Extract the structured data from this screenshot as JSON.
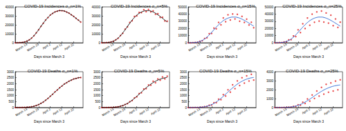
{
  "chart_data": [
    {
      "type": "line",
      "title": "COVID-19 Incidences σ_n=1%",
      "x_label": "Days since March 3",
      "x": [
        0,
        2,
        4,
        6,
        8,
        10,
        12,
        14,
        16,
        18,
        20,
        22,
        24,
        26,
        28,
        30,
        32,
        34,
        36,
        38,
        40,
        42,
        44,
        46,
        48,
        50,
        52,
        54,
        56
      ],
      "xlim": [
        0,
        58
      ],
      "xticks": [
        {
          "value": 10,
          "label": "March 13"
        },
        {
          "value": 20,
          "label": "March 23"
        },
        {
          "value": 30,
          "label": "April 2"
        },
        {
          "value": 40,
          "label": "April 12"
        },
        {
          "value": 50,
          "label": "April 22"
        }
      ],
      "ylim": [
        0,
        40000
      ],
      "yticks": [
        0,
        10000,
        20000,
        30000,
        40000
      ],
      "grid": false,
      "series": [
        {
          "type": "scatter",
          "color": "#e41a1c",
          "marker": "circle",
          "values": [
            0,
            51,
            148,
            404,
            893,
            1815,
            3180,
            5240,
            7760,
            11080,
            14420,
            18300,
            21700,
            25350,
            28100,
            30950,
            32700,
            34450,
            35200,
            35900,
            35700,
            35450,
            34200,
            33050,
            31100,
            29400,
            27200,
            25300,
            23050
          ]
        },
        {
          "type": "line",
          "color": "#000000",
          "line_style": "solid",
          "values": [
            0,
            50,
            150,
            400,
            900,
            1800,
            3200,
            5200,
            7800,
            11000,
            14500,
            18200,
            21800,
            25200,
            28200,
            30800,
            32800,
            34300,
            35300,
            35800,
            35800,
            35300,
            34300,
            32900,
            31200,
            29300,
            27300,
            25200,
            23200
          ]
        }
      ]
    },
    {
      "type": "line",
      "title": "COVID-19 Incidences σ_n=5%",
      "x_label": "Days since March 3",
      "x": [
        0,
        2,
        4,
        6,
        8,
        10,
        12,
        14,
        16,
        18,
        20,
        22,
        24,
        26,
        28,
        30,
        32,
        34,
        36,
        38,
        40,
        42,
        44,
        46,
        48,
        50,
        52,
        54,
        56
      ],
      "xlim": [
        0,
        58
      ],
      "xticks": [
        {
          "value": 10,
          "label": "March 13"
        },
        {
          "value": 20,
          "label": "March 23"
        },
        {
          "value": 30,
          "label": "April 2"
        },
        {
          "value": 40,
          "label": "April 12"
        },
        {
          "value": 50,
          "label": "April 22"
        }
      ],
      "ylim": [
        0,
        40000
      ],
      "yticks": [
        0,
        10000,
        20000,
        30000,
        40000
      ],
      "grid": false,
      "series": [
        {
          "type": "scatter",
          "color": "#e41a1c",
          "marker": "circle",
          "values": [
            0,
            48,
            156,
            390,
            940,
            1760,
            3330,
            5010,
            8120,
            10600,
            15100,
            17700,
            22600,
            24500,
            29300,
            30000,
            33900,
            33600,
            36800,
            34700,
            37100,
            34400,
            35600,
            31800,
            32400,
            28300,
            28400,
            24300,
            24000
          ]
        },
        {
          "type": "line",
          "color": "#000000",
          "line_style": "solid",
          "values": [
            0,
            50,
            150,
            400,
            900,
            1800,
            3200,
            5200,
            7800,
            11000,
            14500,
            18200,
            21800,
            25200,
            28200,
            30800,
            32800,
            34300,
            35300,
            35800,
            35800,
            35300,
            34300,
            32900,
            31200,
            29300,
            27300,
            25200,
            23200
          ]
        }
      ]
    },
    {
      "type": "line",
      "title": "COVID-19 Incidences σ_n=15%",
      "x_label": "Days since March 3",
      "x": [
        0,
        2,
        4,
        6,
        8,
        10,
        12,
        14,
        16,
        18,
        20,
        22,
        24,
        26,
        28,
        30,
        32,
        34,
        36,
        38,
        40,
        42,
        44,
        46,
        48,
        50,
        52,
        54,
        56
      ],
      "xlim": [
        0,
        58
      ],
      "xticks": [
        {
          "value": 10,
          "label": "March 13"
        },
        {
          "value": 20,
          "label": "March 23"
        },
        {
          "value": 30,
          "label": "April 2"
        },
        {
          "value": 40,
          "label": "April 12"
        },
        {
          "value": 50,
          "label": "April 22"
        }
      ],
      "ylim": [
        0,
        50000
      ],
      "yticks": [
        0,
        10000,
        20000,
        30000,
        40000,
        50000
      ],
      "grid": false,
      "series": [
        {
          "type": "scatter",
          "color": "#e41a1c",
          "marker": "circle",
          "values": [
            0,
            57,
            130,
            450,
            780,
            2050,
            2800,
            5900,
            7000,
            12600,
            13000,
            20500,
            19400,
            28300,
            25000,
            34600,
            29400,
            38900,
            31800,
            40200,
            33200,
            39600,
            30100,
            36800,
            28300,
            32900,
            24800,
            28600,
            20900
          ]
        },
        {
          "type": "line",
          "color": "#1f5fd0",
          "line_style": "solid",
          "values": [
            0,
            50,
            150,
            400,
            900,
            1800,
            3200,
            5200,
            7800,
            11000,
            14500,
            18200,
            21800,
            25200,
            28200,
            30800,
            32800,
            34300,
            35300,
            35800,
            35800,
            35300,
            34300,
            32900,
            31200,
            29300,
            27300,
            25200,
            23200
          ]
        }
      ]
    },
    {
      "type": "line",
      "title": "COVID-19 Incidences σ_n=25%",
      "x_label": "Days since March 3",
      "x": [
        0,
        2,
        4,
        6,
        8,
        10,
        12,
        14,
        16,
        18,
        20,
        22,
        24,
        26,
        28,
        30,
        32,
        34,
        36,
        38,
        40,
        42,
        44,
        46,
        48,
        50,
        52,
        54,
        56
      ],
      "xlim": [
        0,
        58
      ],
      "xticks": [
        {
          "value": 10,
          "label": "March 13"
        },
        {
          "value": 20,
          "label": "March 23"
        },
        {
          "value": 30,
          "label": "April 2"
        },
        {
          "value": 40,
          "label": "April 12"
        },
        {
          "value": 50,
          "label": "April 22"
        }
      ],
      "ylim": [
        0,
        50000
      ],
      "yticks": [
        0,
        10000,
        20000,
        30000,
        40000,
        50000
      ],
      "grid": false,
      "series": [
        {
          "type": "scatter",
          "color": "#e41a1c",
          "marker": "circle",
          "values": [
            0,
            40,
            180,
            320,
            1100,
            1450,
            4000,
            4300,
            9500,
            8600,
            18000,
            14200,
            26500,
            19800,
            34500,
            24400,
            39900,
            28600,
            43100,
            30200,
            44200,
            28900,
            41500,
            27400,
            38500,
            23800,
            33200,
            21400,
            28700
          ]
        },
        {
          "type": "line",
          "color": "#1f5fd0",
          "line_style": "solid",
          "values": [
            0,
            50,
            150,
            400,
            900,
            1800,
            3200,
            5200,
            7800,
            11000,
            14500,
            18200,
            21800,
            25200,
            28200,
            30800,
            32800,
            34300,
            35300,
            35800,
            35800,
            35300,
            34300,
            32900,
            31200,
            29300,
            27300,
            25200,
            23200
          ]
        }
      ]
    },
    {
      "type": "line",
      "title": "COVID-19 Deaths σ_n=1%",
      "x_label": "Days since March 3",
      "x": [
        0,
        2,
        4,
        6,
        8,
        10,
        12,
        14,
        16,
        18,
        20,
        22,
        24,
        26,
        28,
        30,
        32,
        34,
        36,
        38,
        40,
        42,
        44,
        46,
        48,
        50,
        52,
        54,
        56
      ],
      "xlim": [
        0,
        58
      ],
      "xticks": [
        {
          "value": 10,
          "label": "March 13"
        },
        {
          "value": 20,
          "label": "March 23"
        },
        {
          "value": 30,
          "label": "April 2"
        },
        {
          "value": 40,
          "label": "April 12"
        },
        {
          "value": 50,
          "label": "April 22"
        }
      ],
      "ylim": [
        0,
        3000
      ],
      "yticks": [
        0,
        500,
        1000,
        1500,
        2000,
        2500,
        3000
      ],
      "grid": false,
      "series": [
        {
          "type": "scatter",
          "color": "#e41a1c",
          "marker": "circle",
          "values": [
            0,
            0,
            2,
            5,
            10,
            20,
            40,
            71,
            109,
            172,
            248,
            353,
            466,
            615,
            765,
            948,
            1112,
            1310,
            1470,
            1660,
            1800,
            1975,
            2080,
            2210,
            2290,
            2390,
            2430,
            2500,
            2510
          ]
        },
        {
          "type": "line",
          "color": "#000000",
          "line_style": "solid",
          "values": [
            0,
            0,
            2,
            5,
            10,
            20,
            40,
            70,
            110,
            170,
            250,
            350,
            470,
            610,
            770,
            940,
            1120,
            1300,
            1480,
            1650,
            1810,
            1960,
            2090,
            2200,
            2300,
            2380,
            2440,
            2490,
            2520
          ]
        }
      ]
    },
    {
      "type": "line",
      "title": "COVID-19 Deaths σ_n=5%",
      "x_label": "Days since March 3",
      "x": [
        0,
        2,
        4,
        6,
        8,
        10,
        12,
        14,
        16,
        18,
        20,
        22,
        24,
        26,
        28,
        30,
        32,
        34,
        36,
        38,
        40,
        42,
        44,
        46,
        48,
        50,
        52,
        54,
        56
      ],
      "xlim": [
        0,
        58
      ],
      "xticks": [
        {
          "value": 10,
          "label": "March 13"
        },
        {
          "value": 20,
          "label": "March 23"
        },
        {
          "value": 30,
          "label": "April 2"
        },
        {
          "value": 40,
          "label": "April 12"
        },
        {
          "value": 50,
          "label": "April 22"
        }
      ],
      "ylim": [
        0,
        3000
      ],
      "yticks": [
        0,
        500,
        1000,
        1500,
        2000,
        2500,
        3000
      ],
      "grid": false,
      "series": [
        {
          "type": "scatter",
          "color": "#e41a1c",
          "marker": "circle",
          "values": [
            0,
            0,
            2,
            5,
            11,
            19,
            42,
            67,
            116,
            162,
            262,
            334,
            495,
            585,
            810,
            900,
            1170,
            1240,
            1550,
            1590,
            1890,
            1870,
            2200,
            2080,
            2390,
            2290,
            2560,
            2400,
            2620
          ]
        },
        {
          "type": "line",
          "color": "#000000",
          "line_style": "solid",
          "values": [
            0,
            0,
            2,
            5,
            10,
            20,
            40,
            70,
            110,
            170,
            250,
            350,
            470,
            610,
            770,
            940,
            1120,
            1300,
            1480,
            1650,
            1810,
            1960,
            2090,
            2200,
            2300,
            2380,
            2440,
            2490,
            2520
          ]
        }
      ]
    },
    {
      "type": "line",
      "title": "COVID-19 Deaths σ_n=15%",
      "x_label": "Days since March 3",
      "x": [
        0,
        2,
        4,
        6,
        8,
        10,
        12,
        14,
        16,
        18,
        20,
        22,
        24,
        26,
        28,
        30,
        32,
        34,
        36,
        38,
        40,
        42,
        44,
        46,
        48,
        50,
        52,
        54,
        56
      ],
      "xlim": [
        0,
        58
      ],
      "xticks": [
        {
          "value": 10,
          "label": "March 13"
        },
        {
          "value": 20,
          "label": "March 23"
        },
        {
          "value": 30,
          "label": "April 2"
        },
        {
          "value": 40,
          "label": "April 12"
        },
        {
          "value": 50,
          "label": "April 22"
        }
      ],
      "ylim": [
        0,
        3000
      ],
      "yticks": [
        0,
        500,
        1000,
        1500,
        2000,
        2500,
        3000
      ],
      "grid": false,
      "series": [
        {
          "type": "scatter",
          "color": "#e41a1c",
          "marker": "circle",
          "values": [
            0,
            0,
            2,
            6,
            9,
            23,
            35,
            80,
            95,
            196,
            215,
            405,
            410,
            700,
            660,
            1080,
            970,
            1490,
            1290,
            1900,
            1580,
            2230,
            1850,
            2500,
            2050,
            2650,
            2220,
            2780,
            2300
          ]
        },
        {
          "type": "line",
          "color": "#1f5fd0",
          "line_style": "solid",
          "values": [
            0,
            0,
            2,
            5,
            10,
            20,
            40,
            70,
            110,
            170,
            250,
            350,
            470,
            610,
            770,
            940,
            1120,
            1300,
            1480,
            1650,
            1810,
            1960,
            2090,
            2200,
            2300,
            2380,
            2440,
            2490,
            2520
          ]
        }
      ]
    },
    {
      "type": "line",
      "title": "COVID-19 Deaths σ_n=25%",
      "x_label": "Days since March 3",
      "x": [
        0,
        2,
        4,
        6,
        8,
        10,
        12,
        14,
        16,
        18,
        20,
        22,
        24,
        26,
        28,
        30,
        32,
        34,
        36,
        38,
        40,
        42,
        44,
        46,
        48,
        50,
        52,
        54,
        56
      ],
      "xlim": [
        0,
        58
      ],
      "xticks": [
        {
          "value": 10,
          "label": "March 13"
        },
        {
          "value": 20,
          "label": "March 23"
        },
        {
          "value": 30,
          "label": "April 2"
        },
        {
          "value": 40,
          "label": "April 12"
        },
        {
          "value": 50,
          "label": "April 22"
        }
      ],
      "ylim": [
        0,
        4000
      ],
      "yticks": [
        0,
        1000,
        2000,
        3000,
        4000
      ],
      "grid": false,
      "series": [
        {
          "type": "scatter",
          "color": "#e41a1c",
          "marker": "circle",
          "values": [
            0,
            0,
            3,
            4,
            13,
            16,
            50,
            55,
            135,
            130,
            310,
            270,
            590,
            460,
            960,
            720,
            1400,
            1010,
            1850,
            1280,
            2250,
            1500,
            2600,
            1710,
            2750,
            1850,
            2950,
            1980,
            3100
          ]
        },
        {
          "type": "line",
          "color": "#1f5fd0",
          "line_style": "solid",
          "values": [
            0,
            0,
            2,
            5,
            10,
            20,
            40,
            70,
            110,
            170,
            250,
            350,
            470,
            610,
            770,
            940,
            1120,
            1300,
            1480,
            1650,
            1810,
            1960,
            2090,
            2200,
            2300,
            2380,
            2440,
            2490,
            2520
          ]
        }
      ]
    }
  ]
}
